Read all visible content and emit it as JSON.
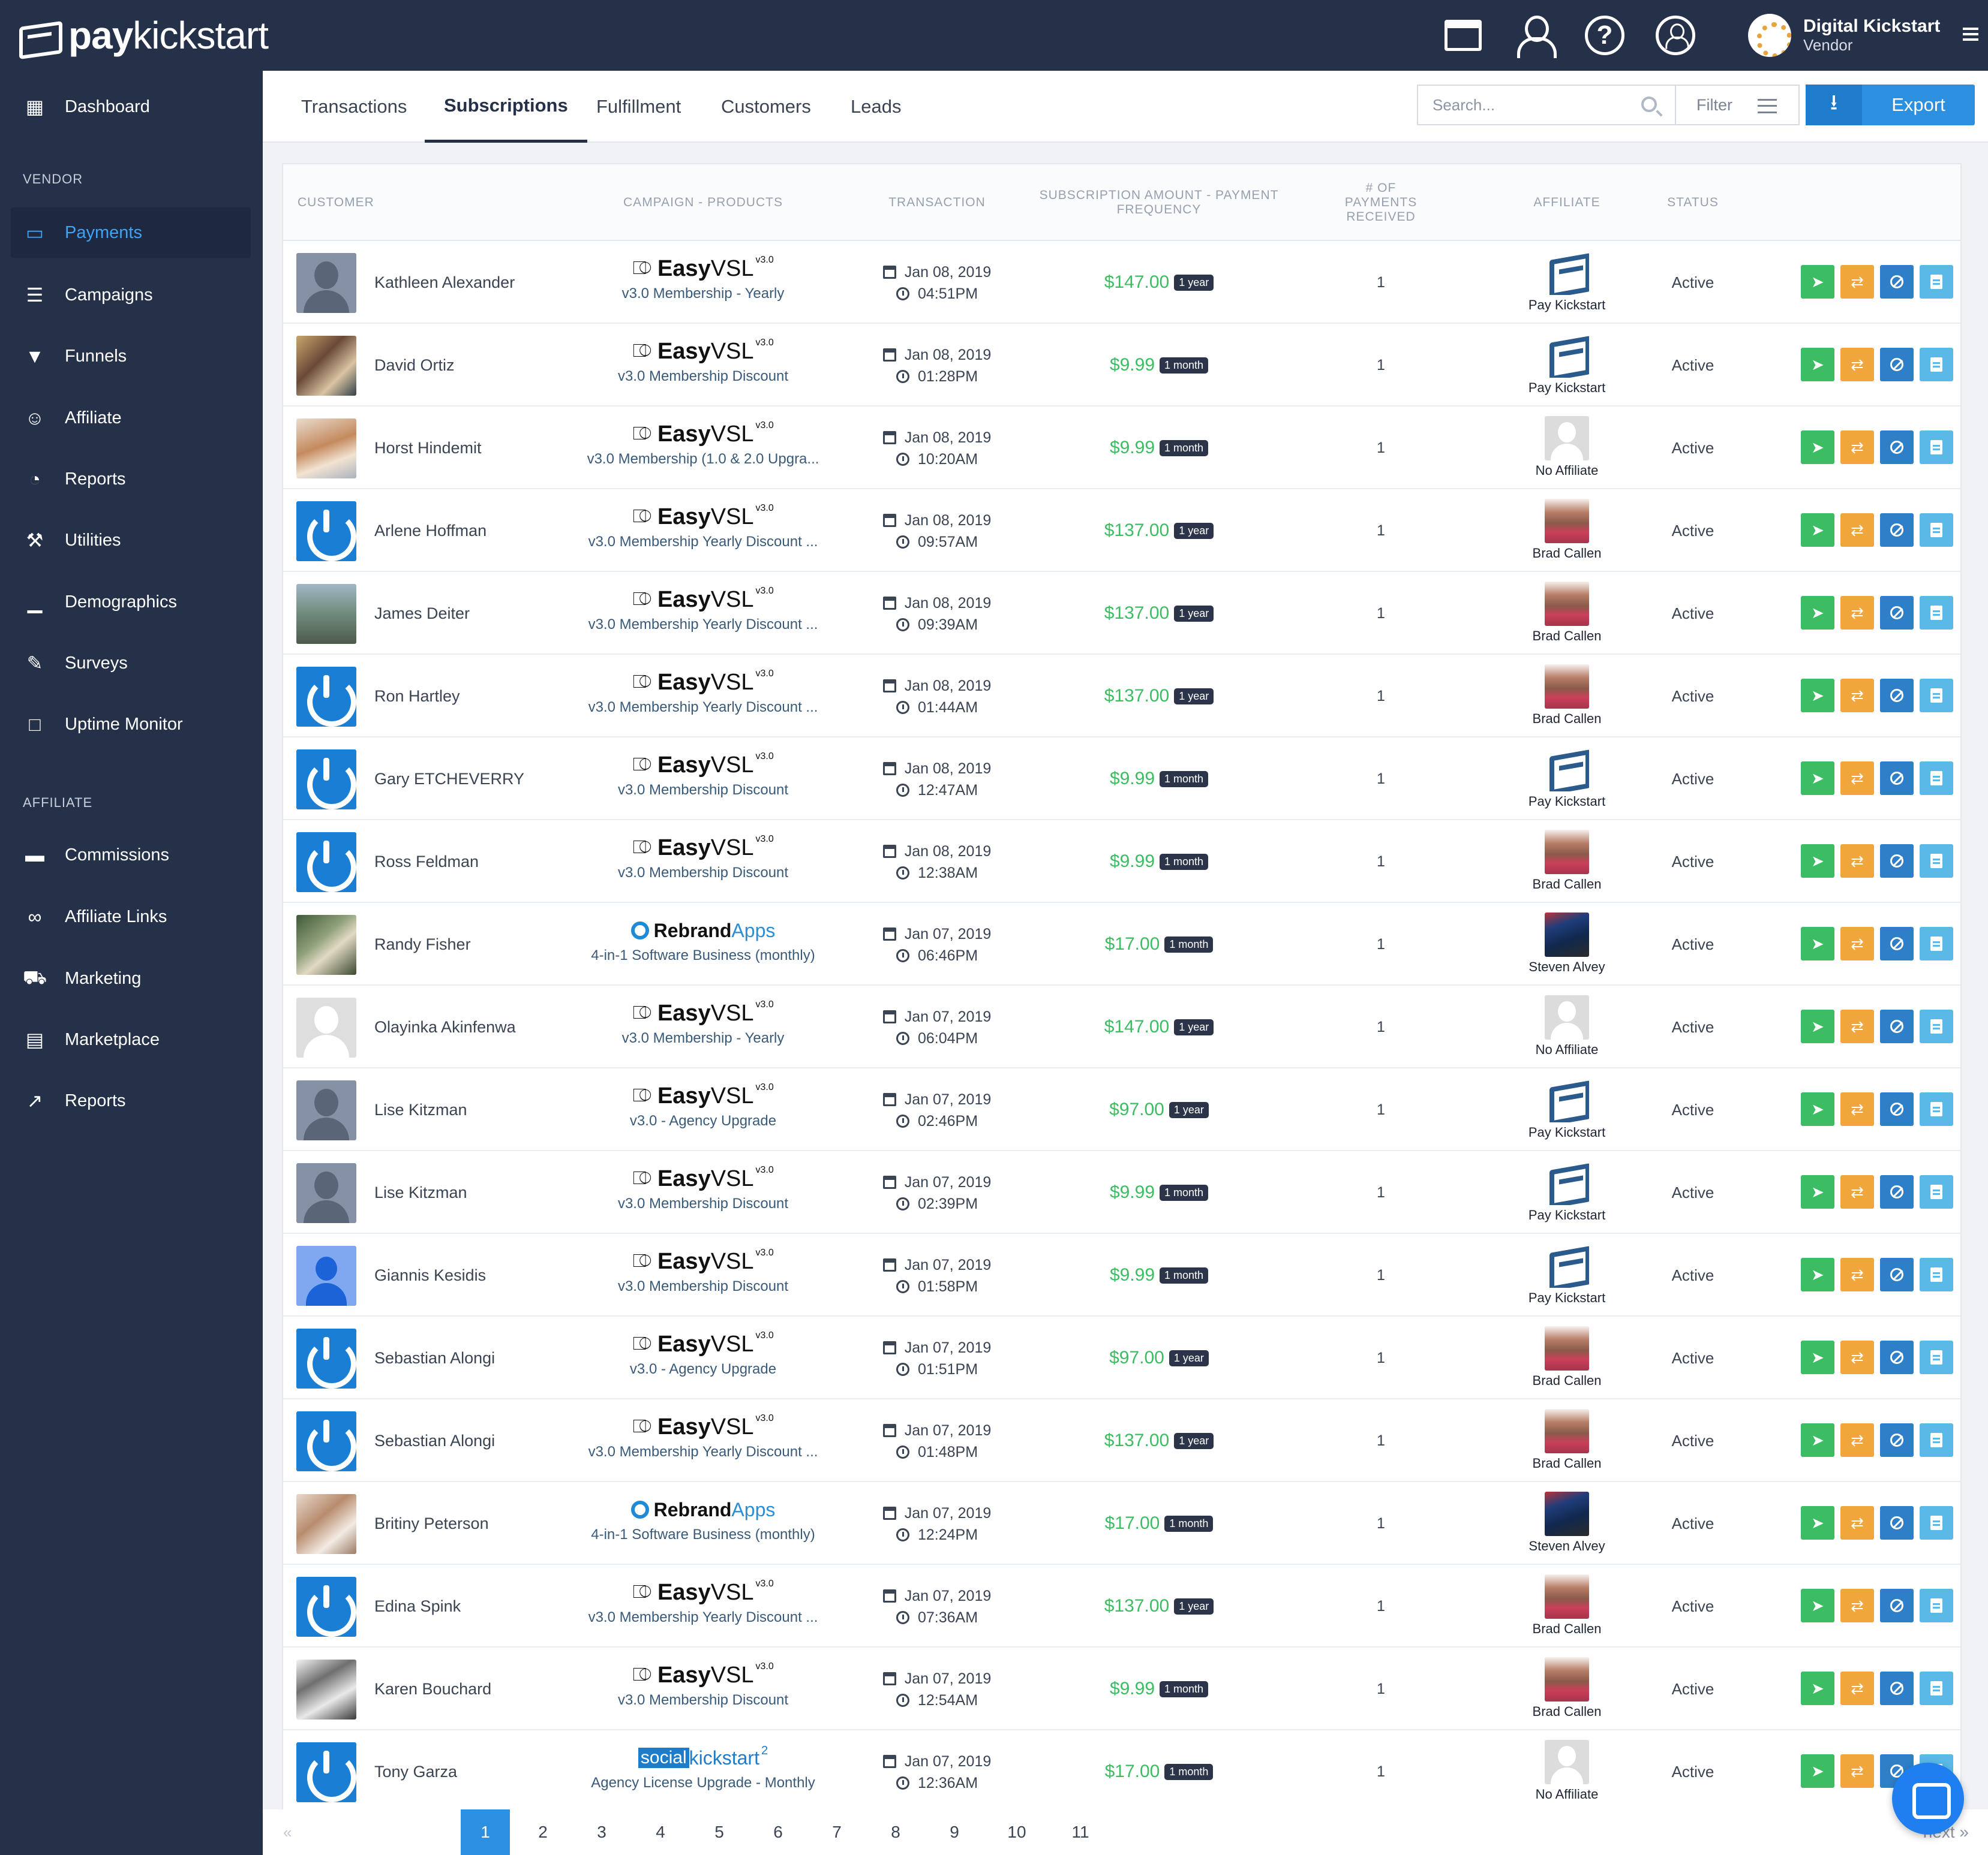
{
  "brand": {
    "bold": "pay",
    "light": "kickstart"
  },
  "header": {
    "user_name": "Digital Kickstart",
    "user_role": "Vendor",
    "help_label": "?",
    "icons": [
      "marketplace-icon",
      "profile-icon",
      "help-icon",
      "account-switch-icon",
      "menu-icon"
    ]
  },
  "sidebar": {
    "top": [
      {
        "label": "Dashboard",
        "icon": "dashboard-icon"
      }
    ],
    "vendor_heading": "VENDOR",
    "vendor": [
      {
        "label": "Payments",
        "icon": "credit-card-icon",
        "active": true
      },
      {
        "label": "Campaigns",
        "icon": "list-icon"
      },
      {
        "label": "Funnels",
        "icon": "filter-icon"
      },
      {
        "label": "Affiliate",
        "icon": "users-icon"
      },
      {
        "label": "Reports",
        "icon": "pie-chart-icon"
      },
      {
        "label": "Utilities",
        "icon": "wrench-icon"
      },
      {
        "label": "Demographics",
        "icon": "bar-chart-icon"
      },
      {
        "label": "Surveys",
        "icon": "edit-icon"
      },
      {
        "label": "Uptime Monitor",
        "icon": "monitor-icon"
      }
    ],
    "affiliate_heading": "AFFILIATE",
    "affiliate": [
      {
        "label": "Commissions",
        "icon": "money-icon"
      },
      {
        "label": "Affiliate Links",
        "icon": "link-icon"
      },
      {
        "label": "Marketing",
        "icon": "cart-icon"
      },
      {
        "label": "Marketplace",
        "icon": "store-icon"
      },
      {
        "label": "Reports",
        "icon": "line-chart-icon"
      }
    ]
  },
  "tabs": [
    {
      "label": "Transactions"
    },
    {
      "label": "Subscriptions",
      "active": true
    },
    {
      "label": "Fulfillment"
    },
    {
      "label": "Customers"
    },
    {
      "label": "Leads"
    }
  ],
  "toolbar": {
    "search_placeholder": "Search...",
    "filter_label": "Filter",
    "export_label": "Export"
  },
  "table": {
    "headers": {
      "customer": "CUSTOMER",
      "campaign": "CAMPAIGN - PRODUCTS",
      "transaction": "TRANSACTION",
      "amount_1": "SUBSCRIPTION AMOUNT - PAYMENT",
      "amount_2": "FREQUENCY",
      "payments_1": "# OF",
      "payments_2": "PAYMENTS",
      "payments_3": "RECEIVED",
      "affiliate": "AFFILIATE",
      "status": "STATUS"
    },
    "rows": [
      {
        "avatar": "silhouette",
        "name": "Kathleen Alexander",
        "brand": "easyvsl",
        "product": "v3.0 Membership - Yearly",
        "date": "Jan 08, 2019",
        "time": "04:51PM",
        "amount": "$147.00",
        "freq": "1 year",
        "payments": "1",
        "aff_img": "pk",
        "affiliate": "Pay Kickstart",
        "status": "Active"
      },
      {
        "avatar": "photo1",
        "name": "David Ortiz",
        "brand": "easyvsl",
        "product": "v3.0 Membership Discount",
        "date": "Jan 08, 2019",
        "time": "01:28PM",
        "amount": "$9.99",
        "freq": "1 month",
        "payments": "1",
        "aff_img": "pk",
        "affiliate": "Pay Kickstart",
        "status": "Active"
      },
      {
        "avatar": "photo2",
        "name": "Horst Hindemit",
        "brand": "easyvsl",
        "product": "v3.0 Membership (1.0 & 2.0 Upgra...",
        "date": "Jan 08, 2019",
        "time": "10:20AM",
        "amount": "$9.99",
        "freq": "1 month",
        "payments": "1",
        "aff_img": "none",
        "affiliate": "No Affiliate",
        "status": "Active"
      },
      {
        "avatar": "power",
        "name": "Arlene Hoffman",
        "brand": "easyvsl",
        "product": "v3.0 Membership Yearly Discount ...",
        "date": "Jan 08, 2019",
        "time": "09:57AM",
        "amount": "$137.00",
        "freq": "1 year",
        "payments": "1",
        "aff_img": "brad",
        "affiliate": "Brad Callen",
        "status": "Active"
      },
      {
        "avatar": "photo3",
        "name": "James Deiter",
        "brand": "easyvsl",
        "product": "v3.0 Membership Yearly Discount ...",
        "date": "Jan 08, 2019",
        "time": "09:39AM",
        "amount": "$137.00",
        "freq": "1 year",
        "payments": "1",
        "aff_img": "brad",
        "affiliate": "Brad Callen",
        "status": "Active"
      },
      {
        "avatar": "power",
        "name": "Ron Hartley",
        "brand": "easyvsl",
        "product": "v3.0 Membership Yearly Discount ...",
        "date": "Jan 08, 2019",
        "time": "01:44AM",
        "amount": "$137.00",
        "freq": "1 year",
        "payments": "1",
        "aff_img": "brad",
        "affiliate": "Brad Callen",
        "status": "Active"
      },
      {
        "avatar": "power",
        "name": "Gary ETCHEVERRY",
        "brand": "easyvsl",
        "product": "v3.0 Membership Discount",
        "date": "Jan 08, 2019",
        "time": "12:47AM",
        "amount": "$9.99",
        "freq": "1 month",
        "payments": "1",
        "aff_img": "pk",
        "affiliate": "Pay Kickstart",
        "status": "Active"
      },
      {
        "avatar": "power",
        "name": "Ross Feldman",
        "brand": "easyvsl",
        "product": "v3.0 Membership Discount",
        "date": "Jan 08, 2019",
        "time": "12:38AM",
        "amount": "$9.99",
        "freq": "1 month",
        "payments": "1",
        "aff_img": "brad",
        "affiliate": "Brad Callen",
        "status": "Active"
      },
      {
        "avatar": "photo4",
        "name": "Randy Fisher",
        "brand": "rebrand",
        "product": "4-in-1 Software Business (monthly)",
        "date": "Jan 07, 2019",
        "time": "06:46PM",
        "amount": "$17.00",
        "freq": "1 month",
        "payments": "1",
        "aff_img": "steven",
        "affiliate": "Steven Alvey",
        "status": "Active"
      },
      {
        "avatar": "blank",
        "name": "Olayinka Akinfenwa",
        "brand": "easyvsl",
        "product": "v3.0 Membership - Yearly",
        "date": "Jan 07, 2019",
        "time": "06:04PM",
        "amount": "$147.00",
        "freq": "1 year",
        "payments": "1",
        "aff_img": "none",
        "affiliate": "No Affiliate",
        "status": "Active"
      },
      {
        "avatar": "silhouette",
        "name": "Lise Kitzman",
        "brand": "easyvsl",
        "product": "v3.0 - Agency Upgrade",
        "date": "Jan 07, 2019",
        "time": "02:46PM",
        "amount": "$97.00",
        "freq": "1 year",
        "payments": "1",
        "aff_img": "pk",
        "affiliate": "Pay Kickstart",
        "status": "Active"
      },
      {
        "avatar": "silhouette",
        "name": "Lise Kitzman",
        "brand": "easyvsl",
        "product": "v3.0 Membership Discount",
        "date": "Jan 07, 2019",
        "time": "02:39PM",
        "amount": "$9.99",
        "freq": "1 month",
        "payments": "1",
        "aff_img": "pk",
        "affiliate": "Pay Kickstart",
        "status": "Active"
      },
      {
        "avatar": "blueperson",
        "name": "Giannis Kesidis",
        "brand": "easyvsl",
        "product": "v3.0 Membership Discount",
        "date": "Jan 07, 2019",
        "time": "01:58PM",
        "amount": "$9.99",
        "freq": "1 month",
        "payments": "1",
        "aff_img": "pk",
        "affiliate": "Pay Kickstart",
        "status": "Active"
      },
      {
        "avatar": "power",
        "name": "Sebastian Alongi",
        "brand": "easyvsl",
        "product": "v3.0 - Agency Upgrade",
        "date": "Jan 07, 2019",
        "time": "01:51PM",
        "amount": "$97.00",
        "freq": "1 year",
        "payments": "1",
        "aff_img": "brad",
        "affiliate": "Brad Callen",
        "status": "Active"
      },
      {
        "avatar": "power",
        "name": "Sebastian Alongi",
        "brand": "easyvsl",
        "product": "v3.0 Membership Yearly Discount ...",
        "date": "Jan 07, 2019",
        "time": "01:48PM",
        "amount": "$137.00",
        "freq": "1 year",
        "payments": "1",
        "aff_img": "brad",
        "affiliate": "Brad Callen",
        "status": "Active"
      },
      {
        "avatar": "photo5",
        "name": "Britiny Peterson",
        "brand": "rebrand",
        "product": "4-in-1 Software Business (monthly)",
        "date": "Jan 07, 2019",
        "time": "12:24PM",
        "amount": "$17.00",
        "freq": "1 month",
        "payments": "1",
        "aff_img": "steven",
        "affiliate": "Steven Alvey",
        "status": "Active"
      },
      {
        "avatar": "power",
        "name": "Edina Spink",
        "brand": "easyvsl",
        "product": "v3.0 Membership Yearly Discount ...",
        "date": "Jan 07, 2019",
        "time": "07:36AM",
        "amount": "$137.00",
        "freq": "1 year",
        "payments": "1",
        "aff_img": "brad",
        "affiliate": "Brad Callen",
        "status": "Active"
      },
      {
        "avatar": "photo6",
        "name": "Karen Bouchard",
        "brand": "easyvsl",
        "product": "v3.0 Membership Discount",
        "date": "Jan 07, 2019",
        "time": "12:54AM",
        "amount": "$9.99",
        "freq": "1 month",
        "payments": "1",
        "aff_img": "brad",
        "affiliate": "Brad Callen",
        "status": "Active"
      },
      {
        "avatar": "power",
        "name": "Tony Garza",
        "brand": "social",
        "product": "Agency License Upgrade - Monthly",
        "date": "Jan 07, 2019",
        "time": "12:36AM",
        "amount": "$17.00",
        "freq": "1 month",
        "payments": "1",
        "aff_img": "none",
        "affiliate": "No Affiliate",
        "status": "Active"
      }
    ]
  },
  "brands": {
    "easyvsl": {
      "bold": "Easy",
      "light": "VSL",
      "sup": "v3.0"
    },
    "rebrand": {
      "bold": "Rebrand",
      "light": "Apps"
    },
    "social": {
      "box": "social",
      "light": "kickstart",
      "sup": "2"
    }
  },
  "pagination": {
    "prev": "«",
    "next": "next »",
    "pages": [
      "1",
      "2",
      "3",
      "4",
      "5",
      "6",
      "7",
      "8",
      "9",
      "10",
      "11"
    ],
    "current": "1"
  },
  "colors": {
    "sidebar": "#253049",
    "accent": "#2d8fe0",
    "amount": "#3cbd62",
    "action_green": "#3dbd63",
    "action_orange": "#f0a63a",
    "action_blue": "#2f7fc8",
    "action_light": "#5ab9e6"
  }
}
